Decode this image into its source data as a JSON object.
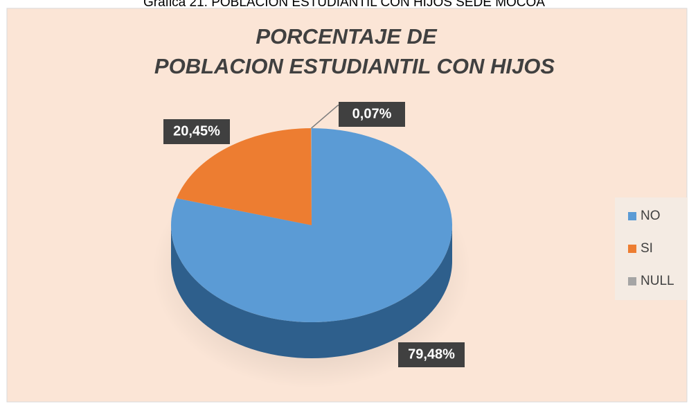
{
  "caption": "Grafica 21. POBLACION ESTUDIANTIL CON HIJOS SEDE MOCOA",
  "chart_data": {
    "type": "pie",
    "title": [
      "PORCENTAJE DE",
      "POBLACION ESTUDIANTIL CON HIJOS"
    ],
    "categories": [
      "NO",
      "SI",
      "NULL"
    ],
    "values": [
      79.48,
      20.45,
      0.07
    ],
    "value_labels": [
      "79,48%",
      "20,45%",
      "0,07%"
    ],
    "colors": [
      "#5b9bd5",
      "#ed7d31",
      "#a5a5a5"
    ],
    "legend": "right"
  }
}
